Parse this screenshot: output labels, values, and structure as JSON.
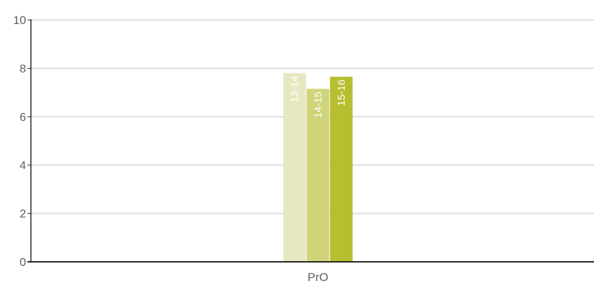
{
  "chart_data": {
    "type": "bar",
    "title": "",
    "xlabel": "",
    "ylabel": "",
    "categories": [
      "PrO"
    ],
    "series": [
      {
        "name": "13-14",
        "values": [
          7.8
        ],
        "color": "#e6e9c0"
      },
      {
        "name": "14-15",
        "values": [
          7.15
        ],
        "color": "#cfd37a"
      },
      {
        "name": "15-16",
        "values": [
          7.65
        ],
        "color": "#b7be30"
      }
    ],
    "ylim": [
      0,
      10
    ],
    "yticks": [
      "0",
      "2",
      "4",
      "6",
      "8",
      "10"
    ],
    "grid": true,
    "legend": "none",
    "colors": {
      "grid": "#dddddd",
      "axis": "#222222",
      "text": "#5f5f5f"
    }
  }
}
